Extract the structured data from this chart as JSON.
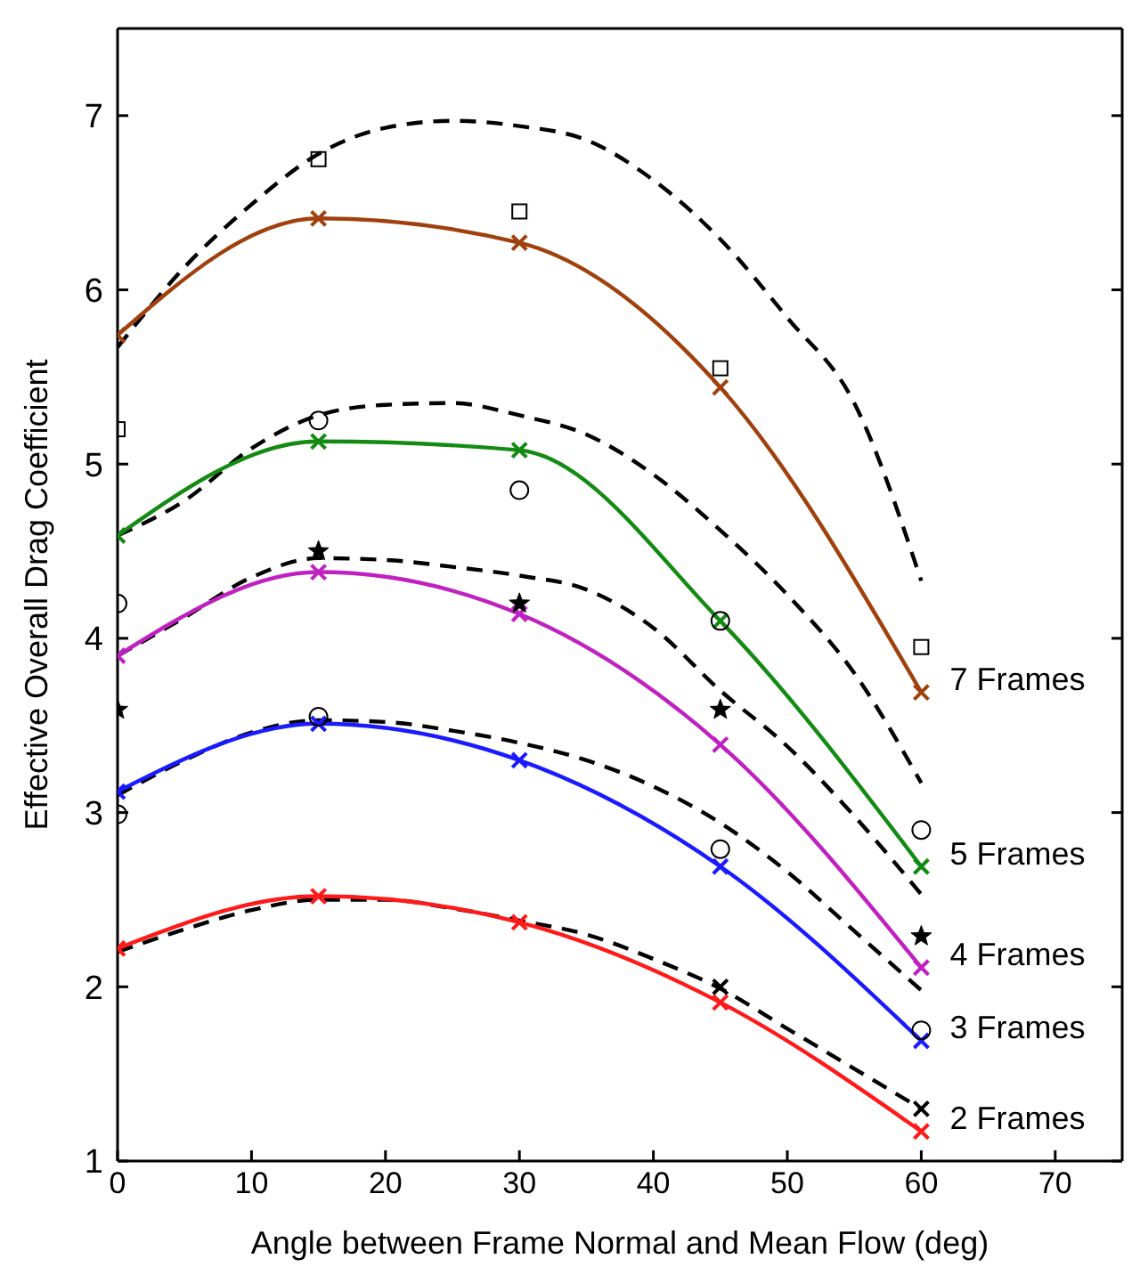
{
  "chart_data": {
    "type": "line",
    "xlabel": "Angle between Frame Normal and Mean Flow (deg)",
    "ylabel": "Effective Overall Drag Coefficient",
    "xlim": [
      0,
      75
    ],
    "xticks": [
      0,
      10,
      20,
      30,
      40,
      50,
      60,
      70
    ],
    "ylim": [
      1,
      7.5
    ],
    "yticks": [
      1,
      2,
      3,
      4,
      5,
      6,
      7
    ],
    "grid": false,
    "legend": false,
    "series": [
      {
        "line_style": "dashed",
        "marker": "none",
        "color": "#000000",
        "x": [
          0,
          5,
          10,
          15,
          20,
          25,
          30,
          35,
          40,
          45,
          50,
          55,
          60
        ],
        "values": [
          5.67,
          6.13,
          6.49,
          6.78,
          6.93,
          6.97,
          6.94,
          6.86,
          6.63,
          6.29,
          5.84,
          5.35,
          4.33
        ]
      },
      {
        "line_style": "dashed",
        "marker": "none",
        "color": "#000000",
        "x": [
          0,
          5,
          10,
          15,
          20,
          25,
          30,
          35,
          40,
          45,
          50,
          55,
          60
        ],
        "values": [
          4.59,
          4.79,
          5.09,
          5.28,
          5.34,
          5.35,
          5.28,
          5.17,
          4.94,
          4.62,
          4.25,
          3.8,
          3.17
        ]
      },
      {
        "line_style": "dashed",
        "marker": "none",
        "color": "#000000",
        "x": [
          0,
          5,
          10,
          15,
          20,
          25,
          30,
          35,
          40,
          45,
          50,
          55,
          60
        ],
        "values": [
          3.9,
          4.12,
          4.35,
          4.46,
          4.45,
          4.41,
          4.36,
          4.28,
          4.06,
          3.7,
          3.38,
          2.98,
          2.53
        ]
      },
      {
        "line_style": "dashed",
        "marker": "none",
        "color": "#000000",
        "x": [
          0,
          5,
          10,
          15,
          20,
          25,
          30,
          35,
          40,
          45,
          50,
          55,
          60
        ],
        "values": [
          3.1,
          3.3,
          3.46,
          3.53,
          3.52,
          3.47,
          3.4,
          3.3,
          3.15,
          2.94,
          2.66,
          2.32,
          1.98
        ]
      },
      {
        "line_style": "dashed",
        "marker": "none",
        "color": "#000000",
        "x": [
          0,
          5,
          10,
          15,
          20,
          25,
          30,
          35,
          40,
          45,
          50,
          55,
          60
        ],
        "values": [
          2.2,
          2.33,
          2.44,
          2.5,
          2.5,
          2.45,
          2.38,
          2.3,
          2.16,
          1.99,
          1.76,
          1.53,
          1.3
        ]
      },
      {
        "name": "7 Frames",
        "line_style": "solid",
        "marker": "cross",
        "color": "#a0410d",
        "x": [
          0,
          15,
          30,
          45,
          60
        ],
        "values": [
          5.74,
          6.41,
          6.27,
          5.44,
          3.69
        ]
      },
      {
        "name": "5 Frames",
        "line_style": "solid",
        "marker": "cross",
        "color": "#138b13",
        "x": [
          0,
          15,
          30,
          45,
          60
        ],
        "values": [
          4.59,
          5.13,
          5.08,
          4.1,
          2.69
        ]
      },
      {
        "name": "4 Frames",
        "line_style": "solid",
        "marker": "cross",
        "color": "#c020c0",
        "x": [
          0,
          15,
          30,
          45,
          60
        ],
        "values": [
          3.9,
          4.38,
          4.14,
          3.39,
          2.11
        ]
      },
      {
        "name": "3 Frames",
        "line_style": "solid",
        "marker": "cross",
        "color": "#1a1aff",
        "x": [
          0,
          15,
          30,
          45,
          60
        ],
        "values": [
          3.12,
          3.51,
          3.3,
          2.69,
          1.69
        ]
      },
      {
        "name": "2 Frames",
        "line_style": "solid",
        "marker": "cross",
        "color": "#ff1a1a",
        "x": [
          0,
          15,
          30,
          45,
          60
        ],
        "values": [
          2.22,
          2.52,
          2.37,
          1.91,
          1.17
        ]
      },
      {
        "type": "scatter",
        "marker": "square",
        "color": "#000000",
        "x": [
          0,
          15,
          30,
          45,
          60
        ],
        "values": [
          5.2,
          6.75,
          6.45,
          5.55,
          3.95
        ]
      },
      {
        "type": "scatter",
        "marker": "circle",
        "color": "#000000",
        "x": [
          0,
          15,
          30,
          45,
          60
        ],
        "values": [
          4.2,
          5.25,
          4.85,
          4.1,
          2.9
        ]
      },
      {
        "type": "scatter",
        "marker": "star",
        "color": "#000000",
        "x": [
          0,
          15,
          30,
          45,
          60
        ],
        "values": [
          3.59,
          4.5,
          4.2,
          3.59,
          2.29
        ]
      },
      {
        "type": "scatter",
        "marker": "circle",
        "color": "#000000",
        "x": [
          0,
          15,
          30,
          45,
          60
        ],
        "values": [
          2.99,
          3.55,
          null,
          2.79,
          1.75
        ]
      },
      {
        "type": "scatter",
        "marker": "cross",
        "color": "#000000",
        "x": [
          45,
          60
        ],
        "values": [
          2.0,
          1.3
        ]
      }
    ]
  }
}
